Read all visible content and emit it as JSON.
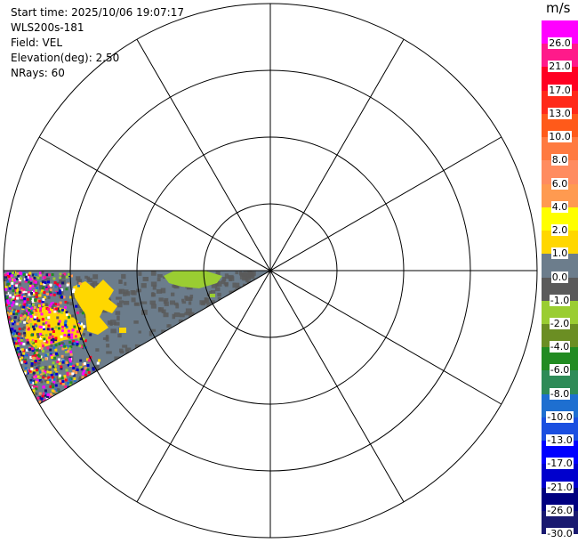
{
  "info": {
    "start_time": "Start time: 2025/10/06 19:07:17",
    "instrument": "WLS200s-181",
    "field": "Field: VEL",
    "elevation": "Elevation(deg): 2.50",
    "nrays": "NRays: 60"
  },
  "colorbar": {
    "unit": "m/s",
    "labels": [
      "26.0",
      "21.0",
      "17.0",
      "13.0",
      "10.0",
      "8.0",
      "6.0",
      "4.0",
      "2.0",
      "1.0",
      "0.0",
      "-1.0",
      "-2.0",
      "-4.0",
      "-6.0",
      "-8.0",
      "-10.0",
      "-13.0",
      "-17.0",
      "-21.0",
      "-26.0",
      "-30.0"
    ],
    "colors": [
      "#ff00ff",
      "#ff1a8a",
      "#ff0022",
      "#ff2a1a",
      "#ff5a1a",
      "#ff7a40",
      "#ff8c60",
      "#ff9a50",
      "#ffff00",
      "#ffd700",
      "#6c7d8c",
      "#5a5a5a",
      "#9acd32",
      "#6b8e23",
      "#228b22",
      "#2e8b57",
      "#1e6fd0",
      "#1a4fe0",
      "#0000ff",
      "#0000cd",
      "#000080",
      "#191970"
    ]
  },
  "chart_data": {
    "type": "heatmap",
    "projection": "polar (PPI)",
    "range_rings": 4,
    "radial_lines_deg_step": 30,
    "sector_azimuth_deg": [
      240,
      270
    ],
    "field": "VEL",
    "units": "m/s",
    "color_range": [
      -30.0,
      26.0
    ],
    "regions": [
      {
        "value_class": "0.0",
        "description_color": "#6c7d8c",
        "coverage": "background of sector"
      },
      {
        "value_class": "-1.0",
        "description_color": "#5a5a5a",
        "coverage": "speckle near radar"
      },
      {
        "value_class": "1.0",
        "description_color": "#ffd700",
        "coverage": "outer western patches"
      },
      {
        "value_class": "-2.0",
        "description_color": "#9acd32",
        "coverage": "small patch north edge near center"
      },
      {
        "value_class": "mixed noise",
        "description_color": "multi",
        "coverage": "far range edge"
      }
    ]
  },
  "colors": {
    "grid": "#000000",
    "sector_base": "#6c7d8c",
    "sector_dark": "#5a5a5a",
    "yellow": "#ffd700",
    "green": "#9acd32"
  }
}
